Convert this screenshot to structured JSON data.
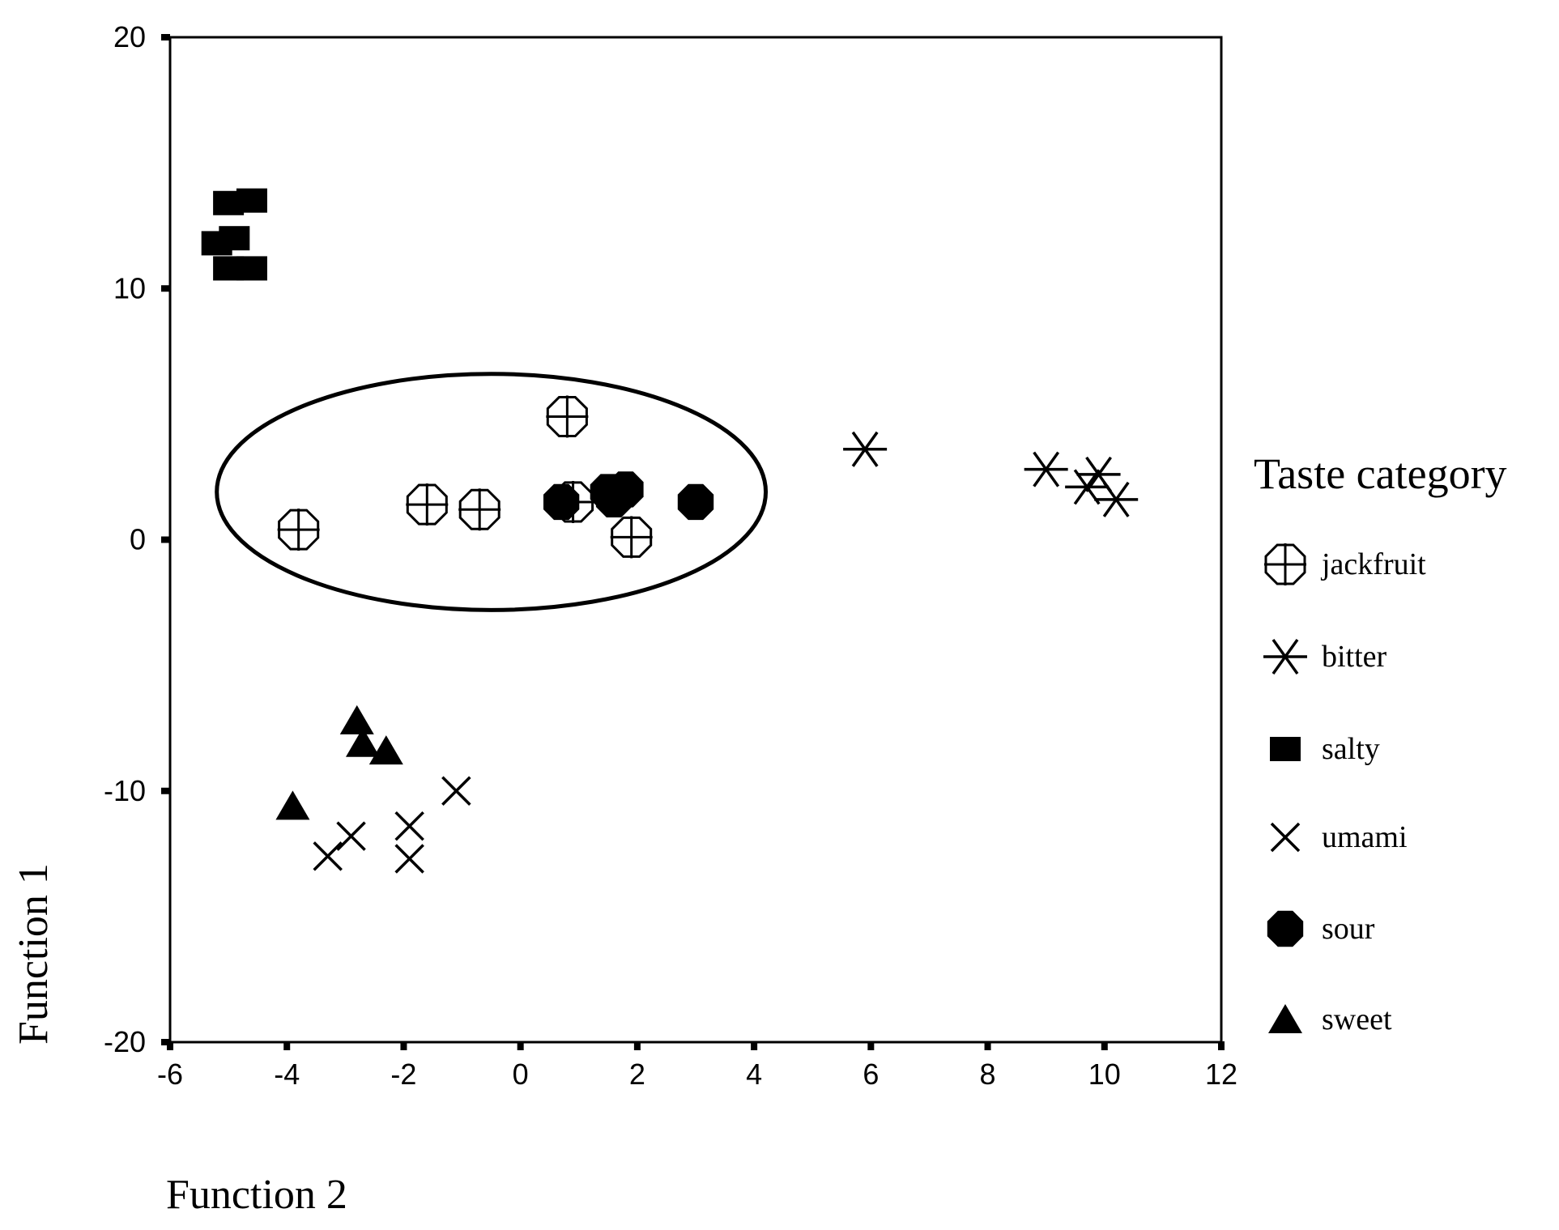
{
  "chart_data": {
    "type": "scatter",
    "xlabel": "Function 2",
    "ylabel": "Function 1",
    "xlim": [
      -6,
      12
    ],
    "ylim": [
      -20,
      20
    ],
    "xticks": [
      -6,
      -4,
      -2,
      0,
      2,
      4,
      6,
      8,
      10,
      12
    ],
    "yticks": [
      -20,
      -10,
      0,
      10,
      20
    ],
    "grid": false,
    "legend": {
      "title": "Taste category",
      "position": "right"
    },
    "series": [
      {
        "name": "jackfruit",
        "marker": "circle-cross",
        "points": [
          [
            -3.8,
            0.4
          ],
          [
            -1.6,
            1.4
          ],
          [
            -0.7,
            1.2
          ],
          [
            0.8,
            4.9
          ],
          [
            0.9,
            1.5
          ],
          [
            1.9,
            0.1
          ]
        ]
      },
      {
        "name": "bitter",
        "marker": "asterisk",
        "points": [
          [
            5.9,
            3.6
          ],
          [
            9.0,
            2.8
          ],
          [
            9.7,
            2.1
          ],
          [
            9.9,
            2.6
          ],
          [
            10.2,
            1.6
          ]
        ]
      },
      {
        "name": "salty",
        "marker": "square",
        "points": [
          [
            -5.0,
            13.4
          ],
          [
            -4.6,
            13.5
          ],
          [
            -5.2,
            11.8
          ],
          [
            -4.9,
            12.0
          ],
          [
            -5.0,
            10.8
          ],
          [
            -4.6,
            10.8
          ]
        ]
      },
      {
        "name": "umami",
        "marker": "x",
        "points": [
          [
            -1.1,
            -10.0
          ],
          [
            -3.3,
            -12.6
          ],
          [
            -2.9,
            -11.8
          ],
          [
            -1.9,
            -11.4
          ],
          [
            -1.9,
            -12.7
          ]
        ]
      },
      {
        "name": "sour",
        "marker": "octagon",
        "points": [
          [
            0.7,
            1.5
          ],
          [
            1.5,
            1.9
          ],
          [
            1.6,
            1.6
          ],
          [
            1.8,
            2.0
          ],
          [
            3.0,
            1.5
          ]
        ]
      },
      {
        "name": "sweet",
        "marker": "triangle",
        "points": [
          [
            -3.9,
            -10.6
          ],
          [
            -2.8,
            -7.2
          ],
          [
            -2.7,
            -8.1
          ],
          [
            -2.3,
            -8.4
          ]
        ]
      }
    ],
    "annotations": [
      {
        "type": "ellipse",
        "cx": -0.5,
        "cy": 1.9,
        "rx": 4.7,
        "ry": 4.7
      }
    ]
  }
}
